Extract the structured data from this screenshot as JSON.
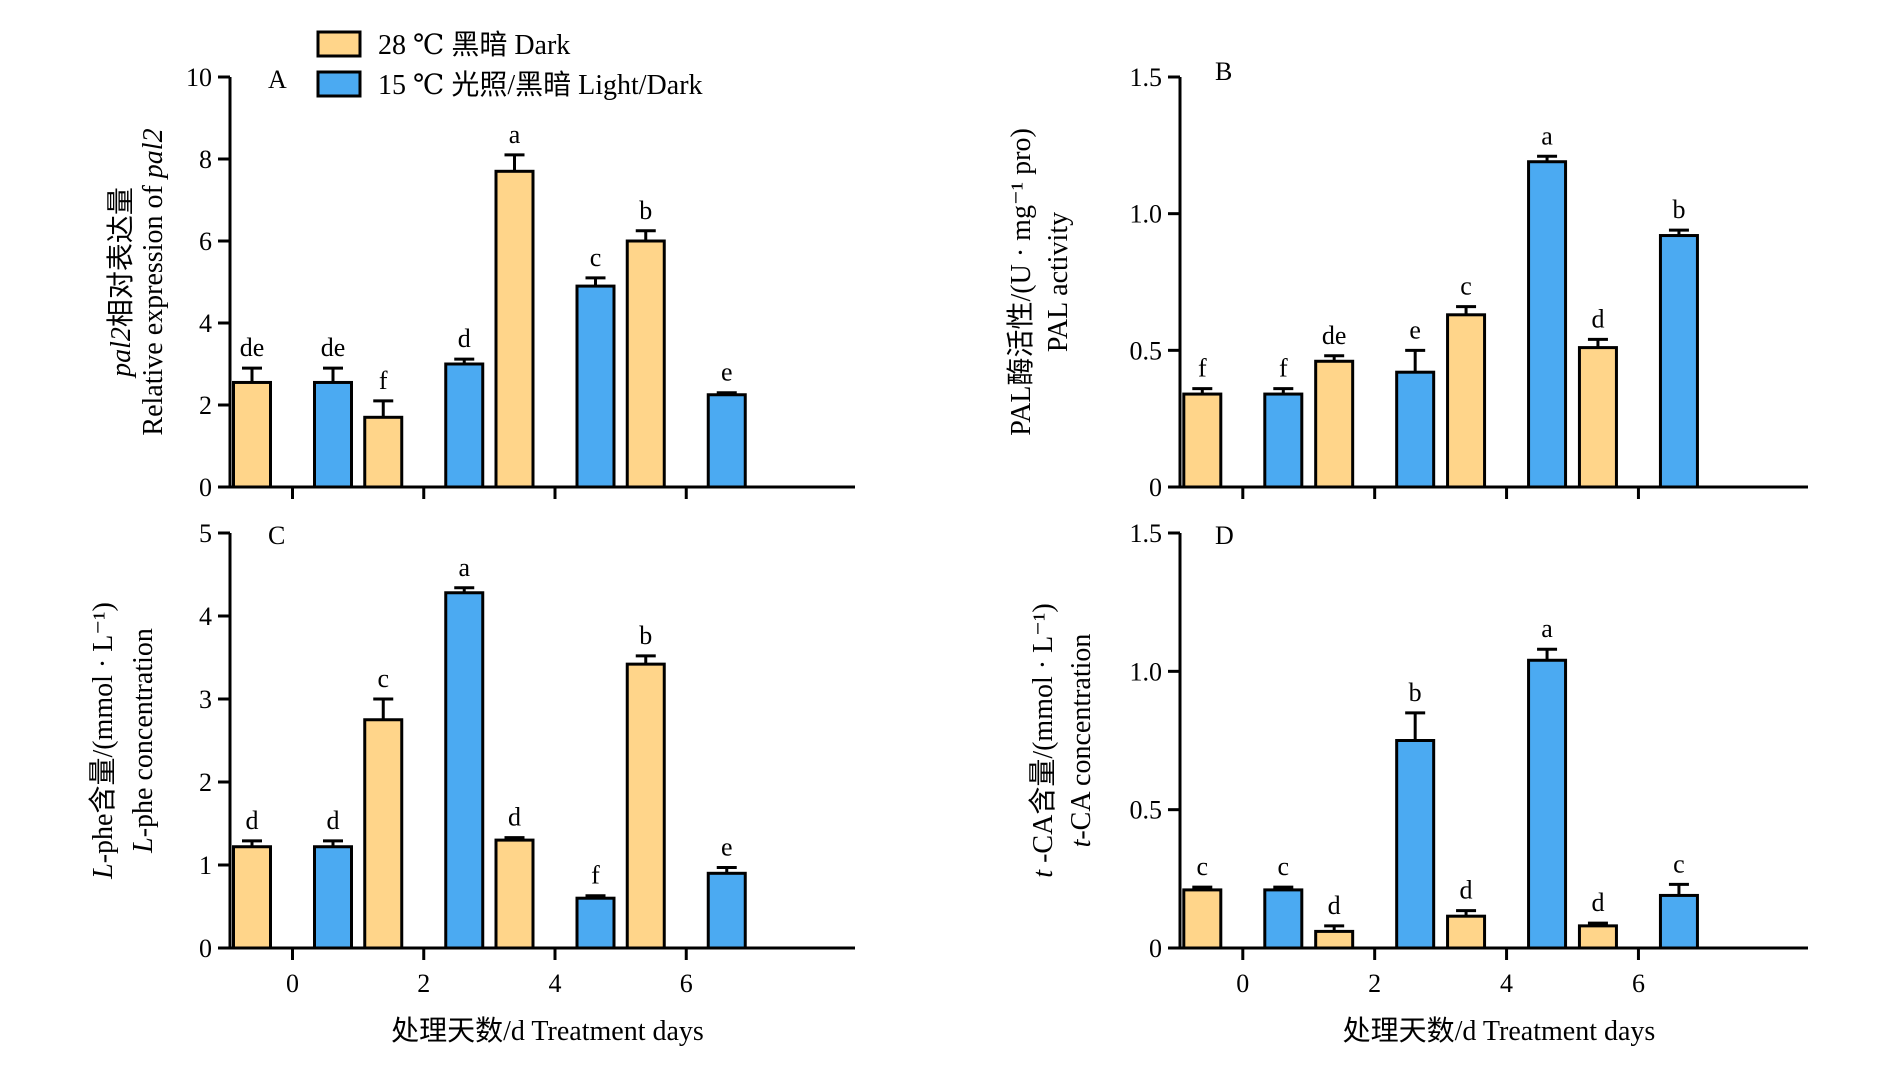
{
  "legend": {
    "items": [
      {
        "label": "28 ℃ 黑暗 Dark",
        "color": "#FFD58A"
      },
      {
        "label": "15 ℃ 光照/黑暗 Light/Dark",
        "color": "#4BAAF2"
      }
    ]
  },
  "chart_data": [
    {
      "panel": "A",
      "type": "bar",
      "categories": [
        "0",
        "2",
        "4",
        "6"
      ],
      "ylabel": {
        "line1_italic": "pal2",
        "line1_rest": "相对表达量",
        "line2_prefix": "Relative expression of ",
        "line2_italic": "pal2"
      },
      "xlabel": "",
      "ylim": [
        0,
        10
      ],
      "yticks": [
        "0",
        "2",
        "4",
        "6",
        "8",
        "10"
      ],
      "series": [
        {
          "name": "28 ℃ 黑暗 Dark",
          "color": "#FFD58A",
          "values": [
            2.55,
            1.7,
            7.7,
            6.0
          ],
          "errors": [
            0.35,
            0.4,
            0.4,
            0.25
          ],
          "letters": [
            "de",
            "f",
            "a",
            "b"
          ]
        },
        {
          "name": "15 ℃ 光照/黑暗 Light/Dark",
          "color": "#4BAAF2",
          "values": [
            2.55,
            3.0,
            4.9,
            2.25
          ],
          "errors": [
            0.35,
            0.12,
            0.2,
            0.05
          ],
          "letters": [
            "de",
            "d",
            "c",
            "e"
          ]
        }
      ]
    },
    {
      "panel": "B",
      "type": "bar",
      "categories": [
        "0",
        "2",
        "4",
        "6"
      ],
      "ylabel": {
        "line1_italic": "",
        "line1_rest": "PAL酶活性/(U · mg⁻¹ pro)",
        "line2_prefix": "PAL activity",
        "line2_italic": ""
      },
      "xlabel": "",
      "ylim": [
        0,
        1.5
      ],
      "yticks": [
        "0",
        "0.5",
        "1.0",
        "1.5"
      ],
      "series": [
        {
          "name": "28 ℃ 黑暗 Dark",
          "color": "#FFD58A",
          "values": [
            0.34,
            0.46,
            0.63,
            0.51
          ],
          "errors": [
            0.02,
            0.02,
            0.03,
            0.03
          ],
          "letters": [
            "f",
            "de",
            "c",
            "d"
          ]
        },
        {
          "name": "15 ℃ 光照/黑暗 Light/Dark",
          "color": "#4BAAF2",
          "values": [
            0.34,
            0.42,
            1.19,
            0.92
          ],
          "errors": [
            0.02,
            0.08,
            0.02,
            0.02
          ],
          "letters": [
            "f",
            "e",
            "a",
            "b"
          ]
        }
      ]
    },
    {
      "panel": "C",
      "type": "bar",
      "categories": [
        "0",
        "2",
        "4",
        "6"
      ],
      "ylabel": {
        "line1_italic": "L",
        "line1_rest": "-phe含量/(mmol · L⁻¹)",
        "line2_prefix": "",
        "line2_italic": "L",
        "line2_rest": "-phe concentration"
      },
      "xlabel": "处理天数/d   Treatment days",
      "ylim": [
        0,
        5
      ],
      "yticks": [
        "0",
        "1",
        "2",
        "3",
        "4",
        "5"
      ],
      "series": [
        {
          "name": "28 ℃ 黑暗 Dark",
          "color": "#FFD58A",
          "values": [
            1.22,
            2.75,
            1.3,
            3.42
          ],
          "errors": [
            0.07,
            0.25,
            0.03,
            0.1
          ],
          "letters": [
            "d",
            "c",
            "d",
            "b"
          ]
        },
        {
          "name": "15 ℃ 光照/黑暗 Light/Dark",
          "color": "#4BAAF2",
          "values": [
            1.22,
            4.28,
            0.6,
            0.9
          ],
          "errors": [
            0.07,
            0.06,
            0.03,
            0.07
          ],
          "letters": [
            "d",
            "a",
            "f",
            "e"
          ]
        }
      ]
    },
    {
      "panel": "D",
      "type": "bar",
      "categories": [
        "0",
        "2",
        "4",
        "6"
      ],
      "ylabel": {
        "line1_italic": "t",
        "line1_rest": " -CA含量/(mmol · L⁻¹)",
        "line2_prefix": "",
        "line2_italic": "t",
        "line2_rest": "-CA concentration"
      },
      "xlabel": "处理天数/d   Treatment days",
      "ylim": [
        0,
        1.5
      ],
      "yticks": [
        "0",
        "0.5",
        "1.0",
        "1.5"
      ],
      "series": [
        {
          "name": "28 ℃ 黑暗 Dark",
          "color": "#FFD58A",
          "values": [
            0.21,
            0.06,
            0.115,
            0.08
          ],
          "errors": [
            0.01,
            0.02,
            0.02,
            0.01
          ],
          "letters": [
            "c",
            "d",
            "d",
            "d"
          ]
        },
        {
          "name": "15 ℃ 光照/黑暗 Light/Dark",
          "color": "#4BAAF2",
          "values": [
            0.21,
            0.75,
            1.04,
            0.19
          ],
          "errors": [
            0.01,
            0.1,
            0.04,
            0.04
          ],
          "letters": [
            "c",
            "b",
            "a",
            "c"
          ]
        }
      ]
    }
  ]
}
